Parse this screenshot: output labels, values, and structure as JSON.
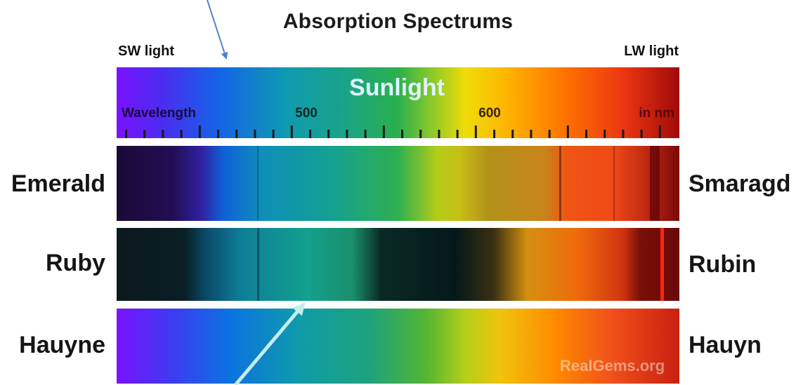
{
  "title": "Absorption Spectrums",
  "spectrum_ends": {
    "left": "SW light",
    "right": "LW light"
  },
  "sunlight": {
    "label": "Sunlight",
    "axis_start_label": "Wavelength",
    "axis_unit_label": "in nm",
    "ticks": {
      "major": [
        "500",
        "600"
      ]
    }
  },
  "gems": [
    {
      "label": "Emerald",
      "label_de": "Smaragd"
    },
    {
      "label": "Ruby",
      "label_de": "Rubin"
    },
    {
      "label": "Hauyne",
      "label_de": "Hauyn"
    }
  ],
  "watermark": "RealGems.org",
  "colors": {
    "spectrum": [
      "#7a12ff",
      "#3c3cf0",
      "#0a7ae8",
      "#0f9ea8",
      "#1aa87a",
      "#2bb640",
      "#b8d81e",
      "#ffde00",
      "#ffab00",
      "#ff6a00",
      "#ec2a12",
      "#a10a0a"
    ],
    "upper_arrow": "#4f7fcf",
    "lower_arrow": "#c4ecef"
  }
}
